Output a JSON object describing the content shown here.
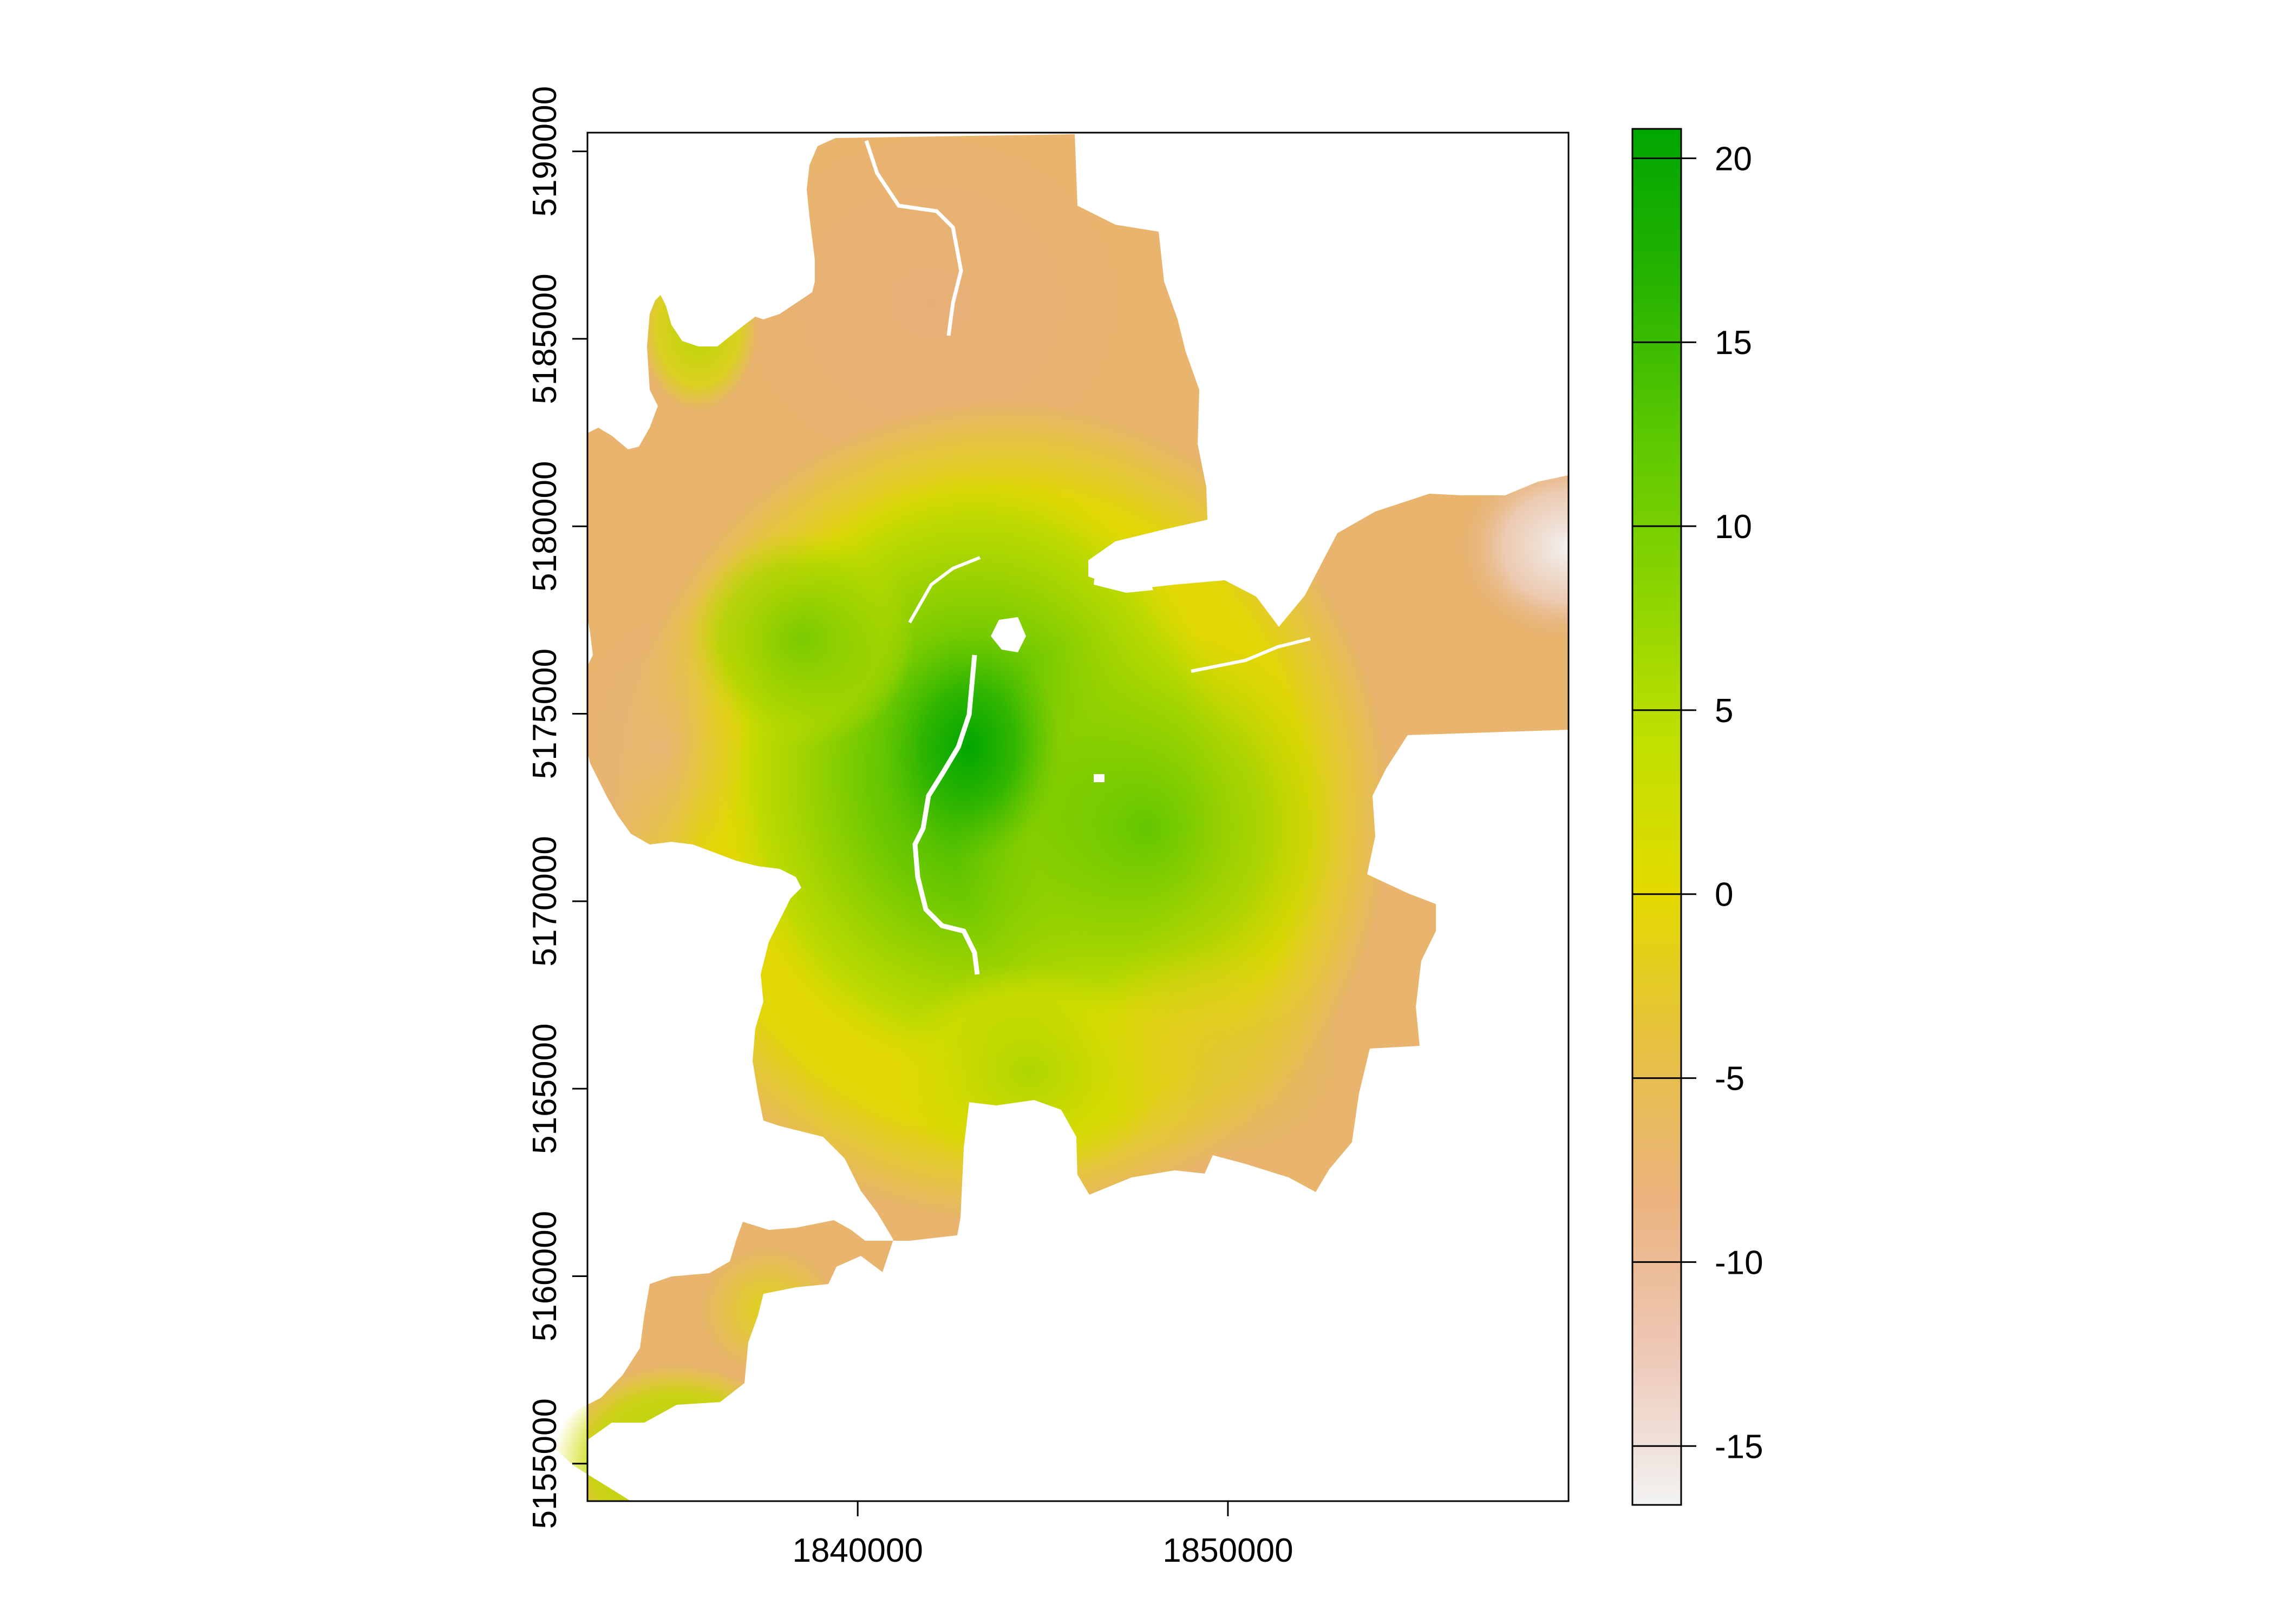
{
  "map": {
    "type": "raster",
    "x_axis": {
      "range": [
        1832700,
        1859200
      ],
      "ticks": [
        1840000,
        1850000
      ],
      "tick_labels": [
        "1840000",
        "1850000"
      ]
    },
    "y_axis": {
      "range": [
        5154000,
        5190500
      ],
      "ticks": [
        5155000,
        5160000,
        5165000,
        5170000,
        5175000,
        5180000,
        5185000,
        5190000
      ],
      "tick_labels": [
        "5155000",
        "5160000",
        "5165000",
        "5170000",
        "5175000",
        "5180000",
        "5185000",
        "5190000"
      ]
    },
    "legend": {
      "position": "right",
      "range": [
        -16.6,
        20.8
      ],
      "ticks": [
        20,
        15,
        10,
        5,
        0,
        -5,
        -10,
        -15
      ],
      "tick_labels": [
        "20",
        "15",
        "10",
        "5",
        "0",
        "-5",
        "-10",
        "-15"
      ],
      "color_ramp": [
        "#f2f2f2",
        "#eec8b6",
        "#ebb27e",
        "#e6c041",
        "#e3da00",
        "#c0e000",
        "#8ad400",
        "#5bc800",
        "#26b300",
        "#00a600"
      ]
    }
  }
}
